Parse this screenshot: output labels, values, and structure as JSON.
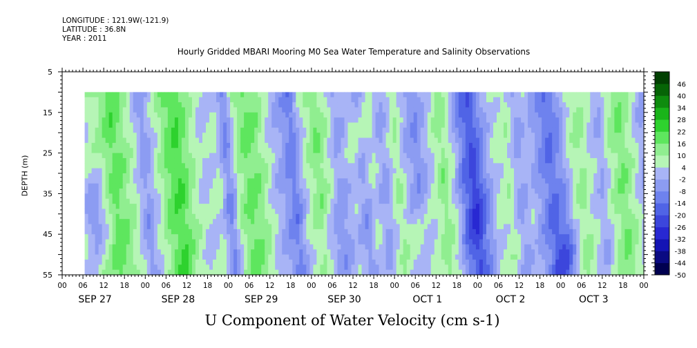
{
  "header": {
    "longitude": "LONGITUDE : 121.9W(-121.9)",
    "latitude": "LATITUDE : 36.8N",
    "year": "YEAR : 2011"
  },
  "chart_data": {
    "type": "heatmap",
    "title": "Hourly Gridded MBARI Mooring M0 Sea Water Temperature and Salinity Observations",
    "caption": "U Component of Water Velocity (cm s-1)",
    "ylabel": "DEPTH (m)",
    "xlabel": "",
    "y_axis": {
      "range": [
        5,
        55
      ],
      "reversed": true,
      "tick_labels": [
        "5",
        "15",
        "25",
        "35",
        "45",
        "55"
      ],
      "minor_ticks": [
        10,
        20,
        30,
        40,
        50
      ]
    },
    "x_axis": {
      "range_hours": [
        0,
        168
      ],
      "hour_tick_labels": [
        "00",
        "06",
        "12",
        "18",
        "00",
        "06",
        "12",
        "18",
        "00",
        "06",
        "12",
        "18",
        "00",
        "06",
        "12",
        "18",
        "00",
        "06",
        "12",
        "18",
        "00",
        "06",
        "12",
        "18",
        "00",
        "06",
        "12",
        "18",
        "00"
      ],
      "day_labels": [
        "SEP 27",
        "SEP 28",
        "SEP 29",
        "SEP 30",
        "OCT  1",
        "OCT  2",
        "OCT  3"
      ]
    },
    "data_extent": {
      "start_hour": 6.5,
      "end_hour": 168,
      "top_depth": 10,
      "bottom_depth": 55
    },
    "bands": [
      {
        "hour": 8,
        "value": 6
      },
      {
        "hour": 12,
        "value": 12
      },
      {
        "hour": 15,
        "value": 20
      },
      {
        "hour": 18,
        "value": 14
      },
      {
        "hour": 21,
        "value": 6
      },
      {
        "hour": 24,
        "value": -6
      },
      {
        "hour": 27,
        "value": 4
      },
      {
        "hour": 31,
        "value": 18
      },
      {
        "hour": 34,
        "value": 22
      },
      {
        "hour": 37,
        "value": 12
      },
      {
        "hour": 41,
        "value": 2
      },
      {
        "hour": 45,
        "value": 6
      },
      {
        "hour": 48,
        "value": -10
      },
      {
        "hour": 51,
        "value": 10
      },
      {
        "hour": 54,
        "value": 18
      },
      {
        "hour": 57,
        "value": 14
      },
      {
        "hour": 61,
        "value": 2
      },
      {
        "hour": 64,
        "value": -4
      },
      {
        "hour": 67,
        "value": -12
      },
      {
        "hour": 70,
        "value": 4
      },
      {
        "hour": 74,
        "value": 16
      },
      {
        "hour": 77,
        "value": 8
      },
      {
        "hour": 80,
        "value": -4
      },
      {
        "hour": 84,
        "value": 2
      },
      {
        "hour": 87,
        "value": -6
      },
      {
        "hour": 90,
        "value": 4
      },
      {
        "hour": 93,
        "value": -4
      },
      {
        "hour": 97,
        "value": 10
      },
      {
        "hour": 100,
        "value": -2
      },
      {
        "hour": 103,
        "value": -8
      },
      {
        "hour": 107,
        "value": 4
      },
      {
        "hour": 110,
        "value": 14
      },
      {
        "hour": 113,
        "value": 4
      },
      {
        "hour": 116,
        "value": -12
      },
      {
        "hour": 119,
        "value": -20
      },
      {
        "hour": 122,
        "value": -6
      },
      {
        "hour": 125,
        "value": 4
      },
      {
        "hour": 129,
        "value": 8
      },
      {
        "hour": 132,
        "value": -4
      },
      {
        "hour": 135,
        "value": 2
      },
      {
        "hour": 138,
        "value": -6
      },
      {
        "hour": 141,
        "value": -14
      },
      {
        "hour": 144,
        "value": -8
      },
      {
        "hour": 147,
        "value": 6
      },
      {
        "hour": 150,
        "value": 12
      },
      {
        "hour": 153,
        "value": 4
      },
      {
        "hour": 156,
        "value": -2
      },
      {
        "hour": 159,
        "value": 10
      },
      {
        "hour": 162,
        "value": 16
      },
      {
        "hour": 165,
        "value": 8
      },
      {
        "hour": 168,
        "value": -2
      }
    ],
    "depth_modifiers": [
      {
        "hour": 10,
        "depth": 40,
        "delta": -14
      },
      {
        "hour": 78,
        "depth": 48,
        "delta": -10
      },
      {
        "hour": 104,
        "depth": 48,
        "delta": 12
      },
      {
        "hour": 120,
        "depth": 40,
        "delta": -8
      },
      {
        "hour": 146,
        "depth": 50,
        "delta": -12
      },
      {
        "hour": 86,
        "depth": 20,
        "delta": 8
      }
    ],
    "colorbar": {
      "levels": [
        -50,
        -44,
        -38,
        -32,
        -26,
        -20,
        -14,
        -8,
        -2,
        4,
        10,
        16,
        22,
        28,
        34,
        40,
        46
      ],
      "tick_labels": [
        "46",
        "40",
        "34",
        "28",
        "22",
        "16",
        "10",
        "4",
        "-2",
        "-8",
        "-14",
        "-20",
        "-26",
        "-32",
        "-38",
        "-44",
        "-50"
      ]
    },
    "colors": {
      "palette": [
        "#000050",
        "#0a0a82",
        "#1414b4",
        "#2828d2",
        "#3c46dc",
        "#5064e6",
        "#6e82ee",
        "#8c9cf2",
        "#a8b4f6",
        "#b6f5b6",
        "#90ee90",
        "#5ee65e",
        "#2ed22e",
        "#1ab41a",
        "#0e8c0e",
        "#066406",
        "#024002"
      ]
    }
  }
}
